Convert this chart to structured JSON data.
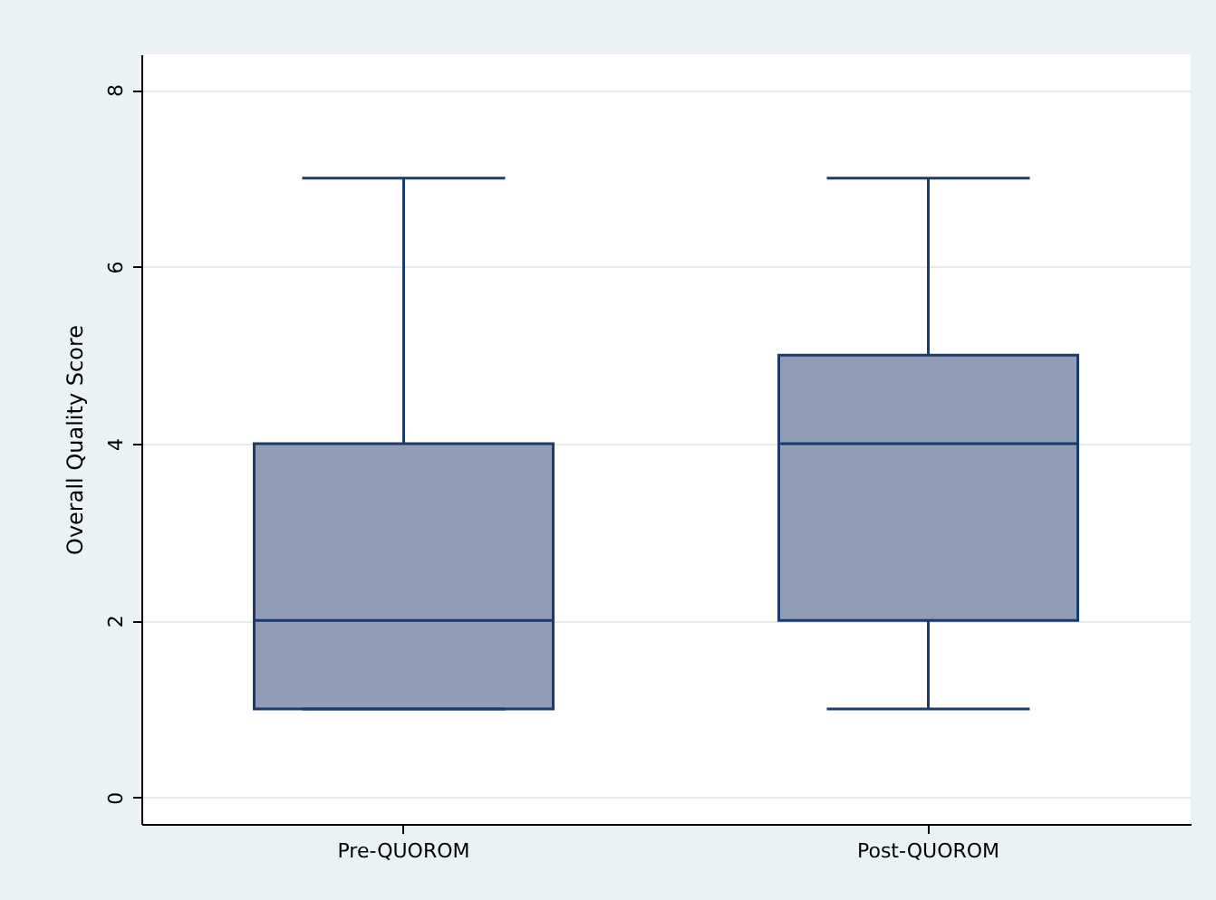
{
  "chart_data": {
    "type": "box",
    "ylabel": "Overall Quality Score",
    "categories": [
      "Pre-QUOROM",
      "Post-QUOROM"
    ],
    "boxes": [
      {
        "low": 1,
        "q1": 1,
        "median": 2,
        "q3": 4,
        "high": 7
      },
      {
        "low": 1,
        "q1": 2,
        "median": 4,
        "q3": 5,
        "high": 7
      }
    ],
    "color": "#8f9db6",
    "ylim": [
      -0.3,
      8.4
    ],
    "yticks": [
      0,
      2,
      4,
      6,
      8
    ],
    "grid": "y"
  }
}
